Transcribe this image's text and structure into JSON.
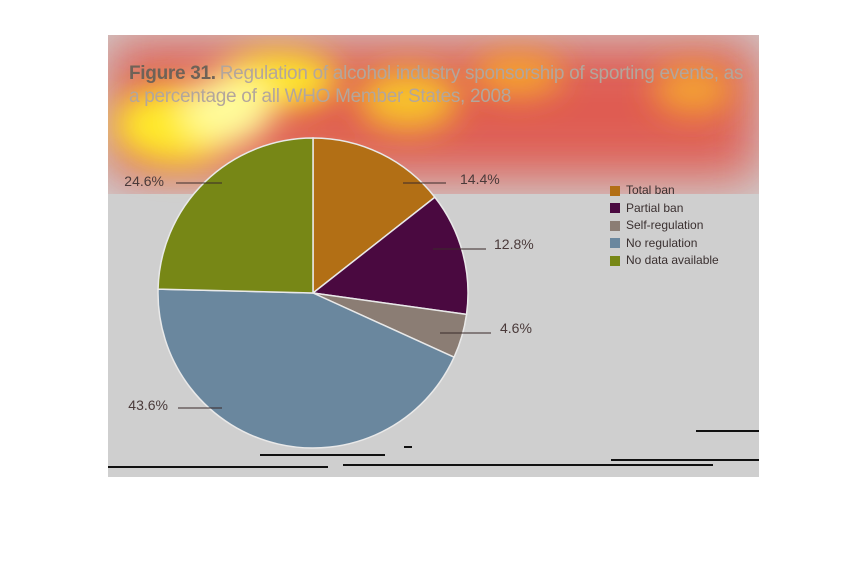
{
  "title": {
    "figure": "Figure 31.",
    "text": "Regulation of alcohol industry sponsorship of sporting events, as a percentage of all WHO Member States, 2008"
  },
  "chart_data": {
    "type": "pie",
    "slices": [
      {
        "name": "Total ban",
        "value": 14.4,
        "label": "14.4%",
        "color": "#b26f15"
      },
      {
        "name": "Partial ban",
        "value": 12.8,
        "label": "12.8%",
        "color": "#4a0940"
      },
      {
        "name": "Self-regulation",
        "value": 4.6,
        "label": "4.6%",
        "color": "#8b7d74"
      },
      {
        "name": "No regulation",
        "value": 43.6,
        "label": "43.6%",
        "color": "#6a879e"
      },
      {
        "name": "No data available",
        "value": 24.6,
        "label": "24.6%",
        "color": "#778716"
      }
    ],
    "legend_position": "right"
  }
}
